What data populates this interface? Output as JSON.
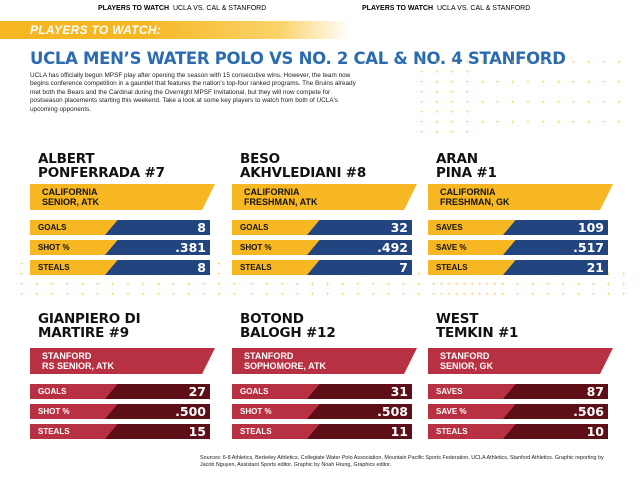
{
  "topbar": {
    "left": {
      "bold": "PLAYERS TO WATCH",
      "rest": "UCLA VS. CAL & STANFORD"
    },
    "right": {
      "bold": "PLAYERS TO WATCH",
      "rest": "UCLA VS. CAL & STANFORD"
    }
  },
  "tag": "PLAYERS TO WATCH:",
  "headline": "UCLA MEN’S WATER POLO VS NO. 2 CAL & NO. 4 STANFORD",
  "intro": "UCLA has officially begun MPSF play after opening the season with 15 consecutive wins. However, the team now begins conference competition in a gauntlet that features the nation's top-four ranked programs. The Bruins already met both the Bears and the Cardinal during the Overnight MPSF Invitational, but they will now compete for postseason placements starting this weekend. Take a look at some key players to watch from both of UCLA's upcoming opponents.",
  "players": [
    {
      "name1": "ALBERT",
      "name2": "PONFERRADA #7",
      "school": "CALIFORNIA",
      "detail": "SENIOR, ATK",
      "stats": [
        {
          "label": "GOALS",
          "value": "8"
        },
        {
          "label": "SHOT %",
          "value": ".381"
        },
        {
          "label": "STEALS",
          "value": "8"
        }
      ]
    },
    {
      "name1": "BESO",
      "name2": "AKHVLEDIANI #8",
      "school": "CALIFORNIA",
      "detail": "FRESHMAN, ATK",
      "stats": [
        {
          "label": "GOALS",
          "value": "32"
        },
        {
          "label": "SHOT %",
          "value": ".492"
        },
        {
          "label": "STEALS",
          "value": "7"
        }
      ]
    },
    {
      "name1": "ARAN",
      "name2": "PINA #1",
      "school": "CALIFORNIA",
      "detail": "FRESHMAN, GK",
      "stats": [
        {
          "label": "SAVES",
          "value": "109"
        },
        {
          "label": "SAVE %",
          "value": ".517"
        },
        {
          "label": "STEALS",
          "value": "21"
        }
      ]
    },
    {
      "name1": "GIANPIERO DI",
      "name2": "MARTIRE #9",
      "school": "STANFORD",
      "detail": "RS SENIOR, ATK",
      "stats": [
        {
          "label": "GOALS",
          "value": "27"
        },
        {
          "label": "SHOT %",
          "value": ".500"
        },
        {
          "label": "STEALS",
          "value": "15"
        }
      ]
    },
    {
      "name1": "BOTOND",
      "name2": "BALOGH #12",
      "school": "STANFORD",
      "detail": "SOPHOMORE, ATK",
      "stats": [
        {
          "label": "GOALS",
          "value": "31"
        },
        {
          "label": "SHOT %",
          "value": ".508"
        },
        {
          "label": "STEALS",
          "value": "11"
        }
      ]
    },
    {
      "name1": "WEST",
      "name2": "TEMKIN #1",
      "school": "STANFORD",
      "detail": "SENIOR, GK",
      "stats": [
        {
          "label": "SAVES",
          "value": "87"
        },
        {
          "label": "SAVE %",
          "value": ".506"
        },
        {
          "label": "STEALS",
          "value": "10"
        }
      ]
    }
  ],
  "footer": "Sources: 6-8 Athletics, Berkeley Athletics, Collegiate Water Polo Association, Mountain Pacific Sports Federation, UCLA Athletics, Stanford Athletics. Graphic reporting by Jacob Nguyen, Assistant Sports editor. Graphic by Noah Hrung, Graphics editor.",
  "colors": {
    "gold": "#f6b722",
    "navy": "#22457f",
    "blue": "#2b6cb1",
    "cardinal": "#b73142",
    "maroon": "#5d0e17"
  }
}
